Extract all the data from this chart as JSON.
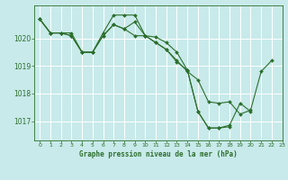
{
  "title": "Graphe pression niveau de la mer (hPa)",
  "bg_color": "#c8eaea",
  "grid_color": "#ffffff",
  "line_color": "#2d6e2d",
  "marker_color": "#2d6e2d",
  "xlim": [
    -0.5,
    23
  ],
  "ylim": [
    1016.3,
    1021.2
  ],
  "yticks": [
    1017,
    1018,
    1019,
    1020
  ],
  "xticks": [
    0,
    1,
    2,
    3,
    4,
    5,
    6,
    7,
    8,
    9,
    10,
    11,
    12,
    13,
    14,
    15,
    16,
    17,
    18,
    19,
    20,
    21,
    22,
    23
  ],
  "series": [
    {
      "x": [
        0,
        1,
        2,
        3,
        4,
        5,
        6,
        7,
        8,
        9,
        10,
        11,
        12,
        13,
        14,
        15,
        16,
        17,
        18,
        19,
        20,
        21,
        22
      ],
      "y": [
        1020.7,
        1020.2,
        1020.2,
        1020.1,
        1019.5,
        1019.5,
        1020.1,
        1020.5,
        1020.35,
        1020.1,
        1020.1,
        1019.85,
        1019.6,
        1019.2,
        1018.8,
        1018.5,
        1017.7,
        1017.65,
        1017.7,
        1017.25,
        1017.4,
        1018.8,
        1019.2
      ]
    },
    {
      "x": [
        0,
        1,
        2,
        3,
        4,
        5,
        6,
        7,
        8,
        9,
        10,
        11,
        12,
        13,
        14,
        15,
        16,
        17,
        18,
        19,
        20,
        21,
        22
      ],
      "y": [
        1020.7,
        1020.2,
        1020.2,
        1020.2,
        1019.5,
        1019.5,
        1020.2,
        1020.85,
        1020.85,
        1020.85,
        1020.1,
        1020.05,
        1019.85,
        1019.5,
        1018.85,
        1017.35,
        1016.75,
        1016.75,
        1016.8,
        null,
        null,
        null,
        null
      ]
    },
    {
      "x": [
        0,
        1,
        2,
        3,
        4,
        5,
        6,
        7,
        8,
        9,
        10,
        11,
        12,
        13,
        14,
        15,
        16,
        17,
        18,
        19,
        20,
        21,
        22
      ],
      "y": [
        1020.7,
        1020.2,
        1020.2,
        1020.1,
        1019.5,
        1019.5,
        1020.1,
        1020.5,
        1020.35,
        1020.6,
        1020.1,
        1019.85,
        1019.6,
        1019.15,
        1018.85,
        1017.35,
        1016.75,
        1016.75,
        1016.85,
        1017.65,
        1017.35,
        null,
        null
      ]
    }
  ]
}
